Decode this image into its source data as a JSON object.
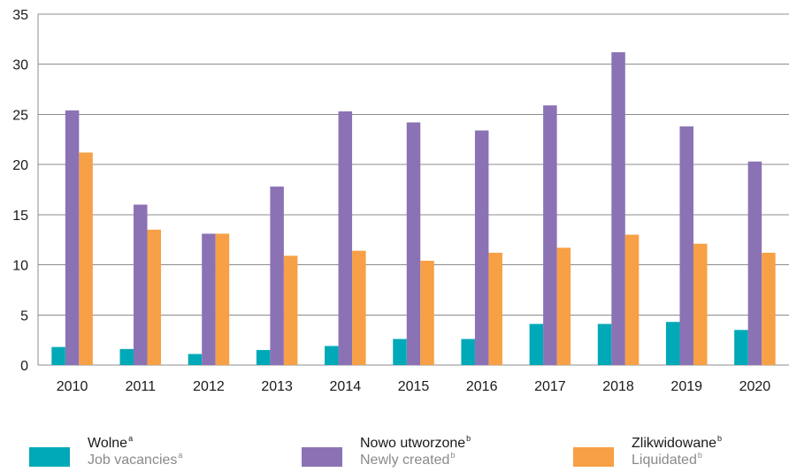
{
  "chart_data": {
    "type": "bar",
    "categories": [
      "2010",
      "2011",
      "2012",
      "2013",
      "2014",
      "2015",
      "2016",
      "2017",
      "2018",
      "2019",
      "2020"
    ],
    "series": [
      {
        "name": "Wolne / Job vacancies",
        "color": "#00A9B7",
        "values": [
          1.8,
          1.6,
          1.1,
          1.5,
          1.9,
          2.6,
          2.6,
          4.1,
          4.1,
          4.3,
          3.5
        ]
      },
      {
        "name": "Nowo utworzone / Newly created",
        "color": "#8B72B5",
        "values": [
          25.4,
          16.0,
          13.1,
          17.8,
          25.3,
          24.2,
          23.4,
          25.9,
          31.2,
          23.8,
          20.3
        ]
      },
      {
        "name": "Zlikwidowane / Liquidated",
        "color": "#F7A045",
        "values": [
          21.2,
          13.5,
          13.1,
          10.9,
          11.4,
          10.4,
          11.2,
          11.7,
          13.0,
          12.1,
          11.2
        ]
      }
    ],
    "title": "",
    "xlabel": "",
    "ylabel": "",
    "ylim": [
      0,
      35
    ],
    "yticks": [
      "0",
      "5",
      "10",
      "15",
      "20",
      "25",
      "30",
      "35"
    ],
    "grid": true,
    "legend_position": "bottom"
  },
  "legend": [
    {
      "pl": "Wolne",
      "en": "Job vacancies",
      "mark": "a",
      "color": "#00A9B7"
    },
    {
      "pl": "Nowo utworzone",
      "en": "Newly created",
      "mark": "b",
      "color": "#8B72B5"
    },
    {
      "pl": "Zlikwidowane",
      "en": "Liquidated",
      "mark": "b",
      "color": "#F7A045"
    }
  ]
}
